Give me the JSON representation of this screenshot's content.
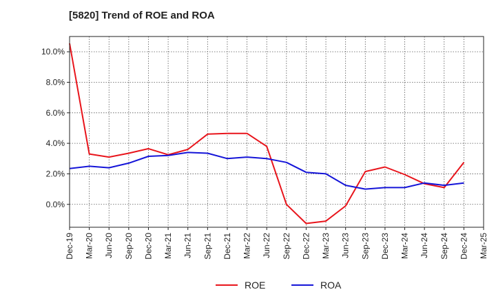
{
  "chart_data": {
    "type": "line",
    "title": "[5820]  Trend of ROE and ROA",
    "xlabel": "",
    "ylabel": "",
    "categories": [
      "Dec-19",
      "Mar-20",
      "Jun-20",
      "Sep-20",
      "Dec-20",
      "Mar-21",
      "Jun-21",
      "Sep-21",
      "Dec-21",
      "Mar-22",
      "Jun-22",
      "Sep-22",
      "Dec-22",
      "Mar-23",
      "Jun-23",
      "Sep-23",
      "Dec-23",
      "Mar-24",
      "Jun-24",
      "Sep-24",
      "Dec-24",
      "Mar-25"
    ],
    "ylim": [
      -1.5,
      11.0
    ],
    "yticks": [
      0,
      2,
      4,
      6,
      8,
      10
    ],
    "ytick_labels": [
      "0.0%",
      "2.0%",
      "4.0%",
      "6.0%",
      "8.0%",
      "10.0%"
    ],
    "grid": true,
    "legend_position": "bottom-center",
    "series": [
      {
        "name": "ROE",
        "color": "#e8141b",
        "values": [
          10.55,
          3.3,
          3.1,
          3.35,
          3.65,
          3.25,
          3.6,
          4.6,
          4.65,
          4.65,
          3.8,
          0.0,
          -1.25,
          -1.1,
          -0.1,
          2.15,
          2.45,
          1.95,
          1.35,
          1.1,
          2.75,
          null
        ]
      },
      {
        "name": "ROA",
        "color": "#1414d8",
        "values": [
          2.35,
          2.5,
          2.4,
          2.7,
          3.15,
          3.2,
          3.4,
          3.35,
          3.0,
          3.1,
          3.0,
          2.75,
          2.1,
          2.0,
          1.25,
          1.0,
          1.1,
          1.1,
          1.4,
          1.25,
          1.4,
          null
        ]
      }
    ]
  }
}
